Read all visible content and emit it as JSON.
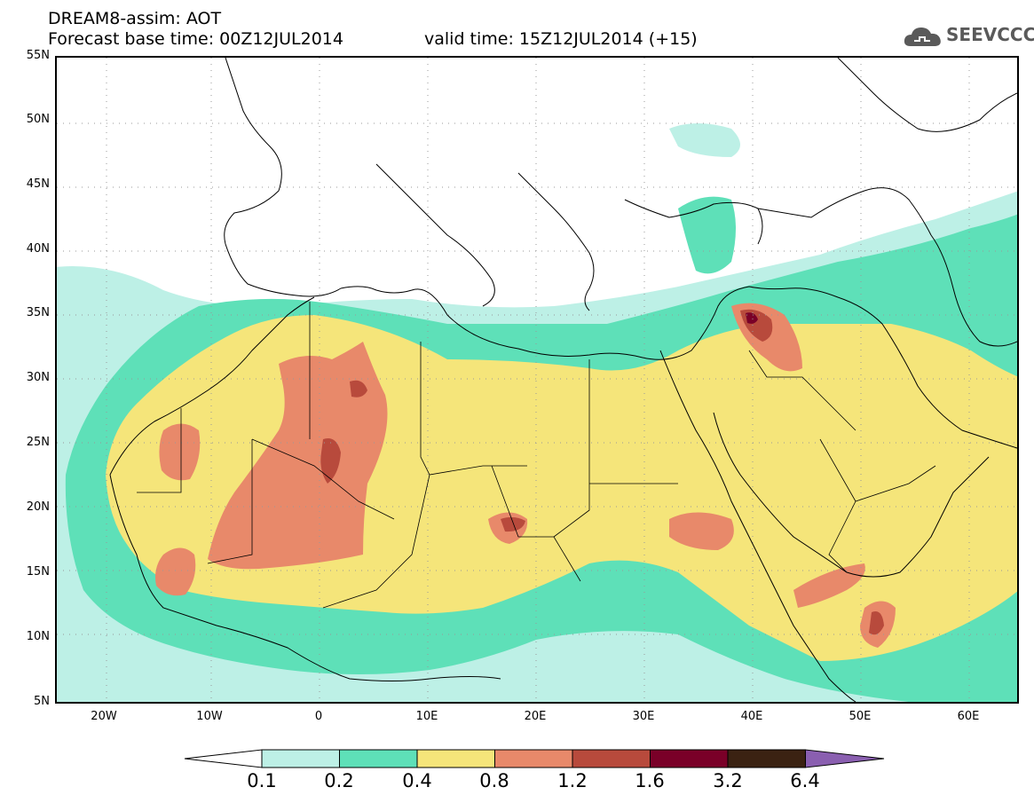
{
  "header": {
    "title": "DREAM8-assim: AOT",
    "base_time": "Forecast base time: 00Z12JUL2014",
    "valid_time": "valid time: 15Z12JUL2014 (+15)",
    "logo_text": "SEEVCCC"
  },
  "axes": {
    "lat_labels": [
      "55N",
      "50N",
      "45N",
      "40N",
      "35N",
      "30N",
      "25N",
      "20N",
      "15N",
      "10N",
      "5N"
    ],
    "lon_labels": [
      "20W",
      "10W",
      "0",
      "10E",
      "20E",
      "30E",
      "40E",
      "50E",
      "60E"
    ]
  },
  "colorbar": {
    "labels": [
      "0.1",
      "0.2",
      "0.4",
      "0.8",
      "1.2",
      "1.6",
      "3.2",
      "6.4"
    ],
    "colors": [
      "#ffffff",
      "#bdf0e6",
      "#5ee0b8",
      "#f5e57a",
      "#e8896a",
      "#b84a3c",
      "#7a0028",
      "#3b2212",
      "#8a5fb0"
    ]
  },
  "map": {
    "colors": {
      "c01": "#bdf0e6",
      "c02": "#5ee0b8",
      "c04": "#f5e57a",
      "c08": "#e8896a",
      "c12": "#b84a3c",
      "c16": "#7a0028"
    }
  }
}
